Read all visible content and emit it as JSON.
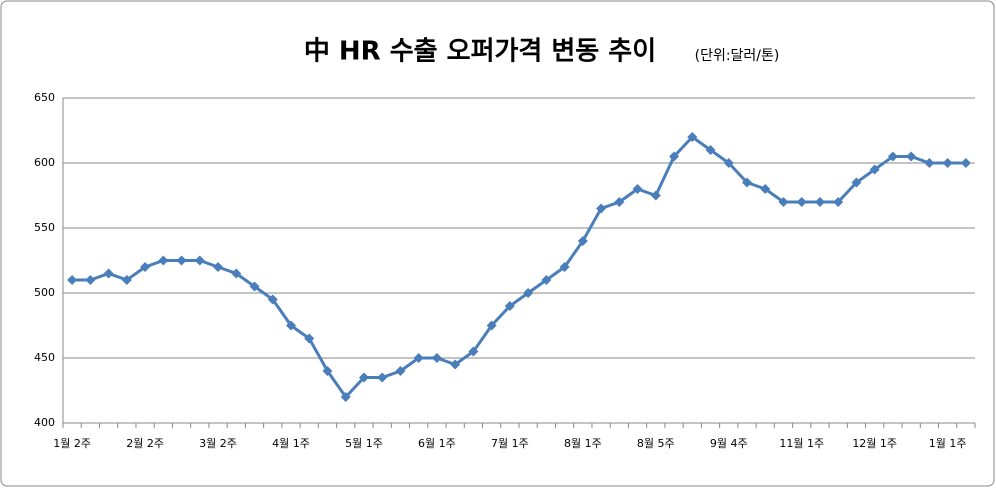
{
  "chart_data": {
    "type": "line",
    "title": "中 HR 수출 오퍼가격 변동 추이",
    "subtitle": "(단위:달러/톤)",
    "categories": [
      "1월 2주",
      null,
      null,
      null,
      "2월 2주",
      null,
      null,
      null,
      "3월 2주",
      null,
      null,
      null,
      "4월 1주",
      null,
      null,
      null,
      "5월 1주",
      null,
      null,
      null,
      "6월 1주",
      null,
      null,
      null,
      "7월 1주",
      null,
      null,
      null,
      "8월 1주",
      null,
      null,
      null,
      "8월 5주",
      null,
      null,
      null,
      "9월 4주",
      null,
      null,
      null,
      "11월 1주",
      null,
      null,
      null,
      "12월 1주",
      null,
      null,
      null,
      "1월 1주",
      null
    ],
    "values": [
      510,
      510,
      515,
      510,
      520,
      525,
      525,
      525,
      520,
      515,
      505,
      495,
      475,
      465,
      440,
      420,
      435,
      435,
      440,
      450,
      450,
      445,
      455,
      475,
      490,
      500,
      510,
      520,
      540,
      565,
      570,
      580,
      575,
      605,
      620,
      610,
      600,
      585,
      580,
      570,
      570,
      570,
      570,
      585,
      595,
      605,
      605,
      600,
      600,
      600
    ],
    "color": "#4a7ebb",
    "ylim": [
      400,
      650
    ],
    "yticks": [
      400,
      450,
      500,
      550,
      600,
      650
    ],
    "grid": true
  }
}
